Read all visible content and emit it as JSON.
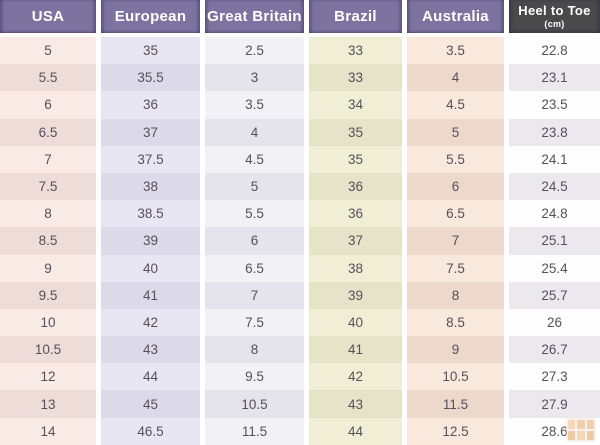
{
  "chart_data": {
    "type": "table",
    "columns": [
      {
        "label": "USA",
        "header_bg": "#7c73a0",
        "header_text": "#ffffff",
        "light": "#f9eae5",
        "dark": "#eedcd9"
      },
      {
        "label": "European",
        "header_bg": "#7c73a0",
        "header_text": "#ffffff",
        "light": "#e8e6f2",
        "dark": "#dcdae8"
      },
      {
        "label": "Great Britain",
        "header_bg": "#7c73a0",
        "header_text": "#ffffff",
        "light": "#f2f1f6",
        "dark": "#e5e3eb"
      },
      {
        "label": "Brazil",
        "header_bg": "#7c73a0",
        "header_text": "#ffffff",
        "light": "#f0efd5",
        "dark": "#e5e4c9"
      },
      {
        "label": "Australia",
        "header_bg": "#7c73a0",
        "header_text": "#ffffff",
        "light": "#f8e9dc",
        "dark": "#ecd9cc"
      },
      {
        "label": "Heel to Toe",
        "sublabel": "(cm)",
        "header_bg": "#4a4a4a",
        "header_text": "#ffffff",
        "light": "#fefefe",
        "dark": "#ebe9ed"
      }
    ],
    "rows": [
      [
        "5",
        "35",
        "2.5",
        "33",
        "3.5",
        "22.8"
      ],
      [
        "5.5",
        "35.5",
        "3",
        "33",
        "4",
        "23.1"
      ],
      [
        "6",
        "36",
        "3.5",
        "34",
        "4.5",
        "23.5"
      ],
      [
        "6.5",
        "37",
        "4",
        "35",
        "5",
        "23.8"
      ],
      [
        "7",
        "37.5",
        "4.5",
        "35",
        "5.5",
        "24.1"
      ],
      [
        "7.5",
        "38",
        "5",
        "36",
        "6",
        "24.5"
      ],
      [
        "8",
        "38.5",
        "5.5",
        "36",
        "6.5",
        "24.8"
      ],
      [
        "8.5",
        "39",
        "6",
        "37",
        "7",
        "25.1"
      ],
      [
        "9",
        "40",
        "6.5",
        "38",
        "7.5",
        "25.4"
      ],
      [
        "9.5",
        "41",
        "7",
        "39",
        "8",
        "25.7"
      ],
      [
        "10",
        "42",
        "7.5",
        "40",
        "8.5",
        "26"
      ],
      [
        "10.5",
        "43",
        "8",
        "41",
        "9",
        "26.7"
      ],
      [
        "12",
        "44",
        "9.5",
        "42",
        "10.5",
        "27.3"
      ],
      [
        "13",
        "45",
        "10.5",
        "43",
        "11.5",
        "27.9"
      ],
      [
        "14",
        "46.5",
        "11.5",
        "44",
        "12.5",
        "28.6"
      ]
    ]
  },
  "watermark": {
    "block_colors": [
      "#e9a961",
      "#e2954a",
      "#e2954a",
      "#dd8c3f",
      "#e9a961",
      "#dd8c3f"
    ],
    "bg_color": "#f3e3d3"
  }
}
